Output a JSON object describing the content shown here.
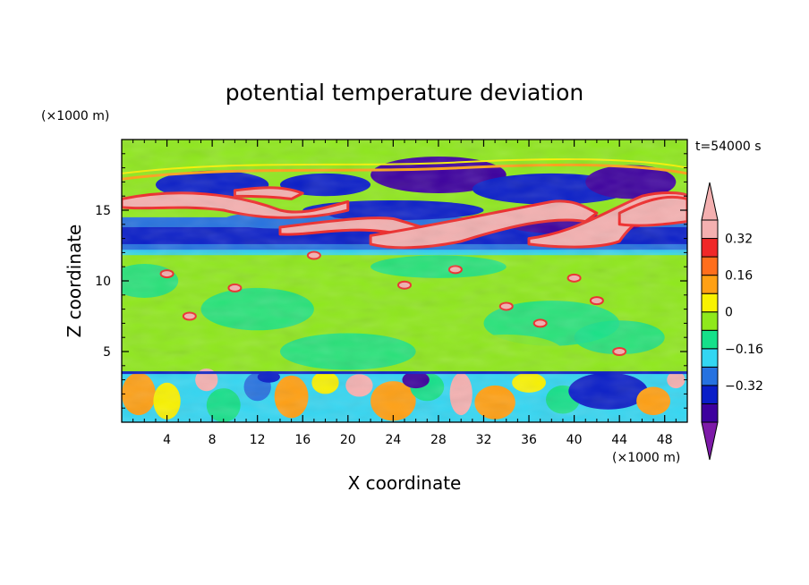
{
  "chart_data": {
    "type": "heatmap",
    "title": "potential temperature deviation",
    "xlabel": "X coordinate",
    "ylabel": "Z coordinate",
    "x_unit": "(×1000 m)",
    "y_unit": "(×1000 m)",
    "time_label": "t=54000 s",
    "xlim": [
      0,
      50
    ],
    "ylim": [
      0,
      20
    ],
    "x_ticks": [
      4,
      8,
      12,
      16,
      20,
      24,
      28,
      32,
      36,
      40,
      44,
      48
    ],
    "y_ticks": [
      5,
      10,
      15
    ],
    "colorbar": {
      "levels": [
        -0.48,
        -0.4,
        -0.32,
        -0.24,
        -0.16,
        -0.08,
        0,
        0.08,
        0.16,
        0.24,
        0.32,
        0.4
      ],
      "labeled_ticks": [
        -0.32,
        -0.16,
        0,
        0.16,
        0.32
      ],
      "colors": [
        "#7d1aa8",
        "#3d009e",
        "#0a1ec8",
        "#2672e0",
        "#33d6f2",
        "#16e08a",
        "#8fe81c",
        "#f8f200",
        "#ffa014",
        "#ff6e1c",
        "#f02828",
        "#f4b0b0"
      ]
    },
    "layers": [
      {
        "z": [
          0,
          3.5
        ],
        "description": "boundary layer with alternating warm and cold anomalies",
        "range": [
          -0.32,
          0.4
        ]
      },
      {
        "z": [
          3.5,
          12
        ],
        "description": "mid levels near zero anomaly",
        "range": [
          -0.08,
          0.08
        ]
      },
      {
        "z": [
          12,
          14.5
        ],
        "description": "cold band",
        "range": [
          -0.48,
          -0.16
        ]
      },
      {
        "z": [
          14.5,
          17.5
        ],
        "description": "strong warm anomaly streaks",
        "range": [
          0.32,
          0.48
        ]
      },
      {
        "z": [
          17.5,
          20
        ],
        "description": "near zero above",
        "range": [
          -0.08,
          0.08
        ]
      }
    ]
  }
}
